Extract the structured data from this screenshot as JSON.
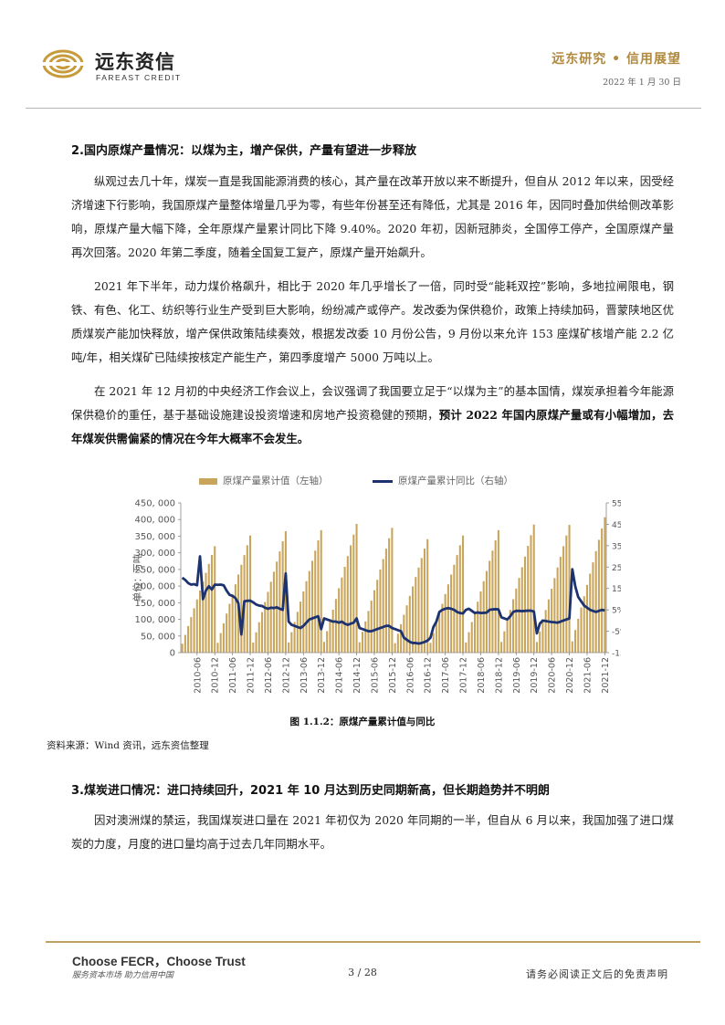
{
  "header": {
    "logo_cn": "远东资信",
    "logo_en": "FAREAST CREDIT",
    "report_series": "远东研究 • 信用展望",
    "date": "2022 年 1 月 30 日"
  },
  "section2": {
    "heading": "2.国内原煤产量情况：以煤为主，增产保供，产量有望进一步释放",
    "p1": "纵观过去几十年，煤炭一直是我国能源消费的核心，其产量在改革开放以来不断提升，但自从 2012 年以来，因受经济增速下行影响，我国原煤产量整体增量几乎为零，有些年份甚至还有降低，尤其是 2016 年，因同时叠加供给侧改革影响，原煤产量大幅下降，全年原煤产量累计同比下降 9.40%。2020 年初，因新冠肺炎，全国停工停产，全国原煤产量再次回落。2020 年第二季度，随着全国复工复产，原煤产量开始飙升。",
    "p2": "2021 年下半年，动力煤价格飙升，相比于 2020 年几乎增长了一倍，同时受“能耗双控”影响，多地拉闸限电，钢铁、有色、化工、纺织等行业生产受到巨大影响，纷纷减产或停产。发改委为保供稳价，政策上持续加码，晋蒙陕地区优质煤炭产能加快释放，增产保供政策陆续奏效，根据发改委 10 月份公告，9 月份以来允许 153 座煤矿核增产能 2.2 亿吨/年，相关煤矿已陆续按核定产能生产，第四季度增产 5000 万吨以上。",
    "p3_plain": "在 2021 年 12 月初的中央经济工作会议上，会议强调了我国要立足于“以煤为主”的基本国情，煤炭承担着今年能源保供稳价的重任，基于基础设施建设投资增速和房地产投资稳健的预期，",
    "p3_bold": "预计 2022 年国内原煤产量或有小幅增加，去年煤炭供需偏紧的情况在今年大概率不会发生。"
  },
  "figure": {
    "caption": "图 1.1.2：原煤产量累计值与同比",
    "source": "资料来源：Wind 资讯，远东资信整理"
  },
  "chart_data": {
    "type": "bar",
    "title": "",
    "series": [
      {
        "name": "原煤产量累计值（左轴）",
        "kind": "bar",
        "axis": "left",
        "color": "#c9a55c"
      },
      {
        "name": "原煤产量累计同比（右轴）",
        "kind": "line",
        "axis": "right",
        "color": "#1c3370"
      }
    ],
    "ylabel_left": "单位：万吨",
    "ylim_left": [
      0,
      450000
    ],
    "yticks_left": [
      "450, 000",
      "400, 000",
      "350, 000",
      "300, 000",
      "250, 000",
      "200, 000",
      "150, 000",
      "100, 000",
      "50, 000",
      "0"
    ],
    "ylim_right": [
      -15,
      55
    ],
    "yticks_right": [
      "55%",
      "45%",
      "35%",
      "25%",
      "15%",
      "5%",
      "-5%",
      "-15%"
    ],
    "xticks": [
      "2010-06",
      "2010-12",
      "2011-06",
      "2011-12",
      "2012-06",
      "2012-12",
      "2013-06",
      "2013-12",
      "2014-06",
      "2014-12",
      "2015-06",
      "2015-12",
      "2016-06",
      "2016-12",
      "2017-06",
      "2017-12",
      "2018-06",
      "2018-12",
      "2019-06",
      "2019-12",
      "2020-06",
      "2020-12",
      "2021-06",
      "2021-12"
    ],
    "annual_totals": [
      320000,
      352000,
      365000,
      368000,
      387000,
      375000,
      341000,
      352000,
      368000,
      385000,
      384000,
      407000
    ],
    "start_month": "2010-01",
    "yoy_pct": [
      20.0,
      19.0,
      17.5,
      16.8,
      17.0,
      16.5,
      30.0,
      10.0,
      14.0,
      16.0,
      14.5,
      16.8,
      16.7,
      16.8,
      16.5,
      14.0,
      12.0,
      11.5,
      10.5,
      8.0,
      -6.5,
      9.0,
      9.2,
      9.3,
      8.5,
      7.5,
      7.0,
      6.8,
      6.0,
      5.5,
      6.0,
      5.8,
      6.2,
      5.5,
      5.0,
      22.0,
      -0.5,
      -2.0,
      -2.5,
      -3.0,
      -3.5,
      -2.5,
      -1.0,
      0.5,
      1.0,
      1.5,
      2.0,
      -4.0,
      1.0,
      0.5,
      0.0,
      -0.5,
      -0.5,
      -1.0,
      -0.5,
      -1.5,
      -2.0,
      -1.5,
      -1.0,
      1.0,
      -3.5,
      -4.0,
      -4.5,
      -5.0,
      -5.0,
      -4.5,
      -4.0,
      -3.5,
      -3.0,
      -2.5,
      -2.5,
      -3.5,
      -4.0,
      -4.5,
      -5.0,
      -8.0,
      -9.0,
      -10.0,
      -10.5,
      -10.5,
      -10.8,
      -10.5,
      -10.0,
      -9.4,
      -8.0,
      -3.0,
      -0.5,
      4.0,
      5.0,
      5.5,
      5.8,
      5.5,
      5.0,
      4.0,
      3.5,
      3.3,
      5.0,
      5.5,
      4.5,
      3.5,
      3.8,
      3.5,
      3.6,
      3.7,
      5.0,
      5.2,
      5.3,
      5.2,
      1.5,
      1.0,
      0.5,
      2.0,
      4.0,
      4.5,
      4.5,
      4.4,
      4.5,
      4.6,
      4.6,
      4.2,
      -6.0,
      -1.5,
      0.0,
      -0.2,
      -0.5,
      -0.7,
      -0.8,
      -1.0,
      -0.5,
      0.0,
      0.5,
      1.0,
      24.0,
      16.0,
      11.0,
      9.0,
      7.0,
      6.0,
      5.0,
      4.5,
      4.0,
      4.5,
      5.0,
      4.7
    ]
  },
  "section3": {
    "heading": "3.煤炭进口情况：进口持续回升，2021 年 10 月达到历史同期新高，但长期趋势并不明朗",
    "p1": "因对澳洲煤的禁运，我国煤炭进口量在 2021 年初仅为 2020 年同期的一半，但自从 6 月以来，我国加强了进口煤炭的力度，月度的进口量均高于过去几年同期水平。"
  },
  "footer": {
    "slogan": "Choose FECR，Choose Trust",
    "sub": "服务资本市场  助力信用中国",
    "page": "3 / 28",
    "disclaimer": "请务必阅读正文后的免责声明"
  }
}
